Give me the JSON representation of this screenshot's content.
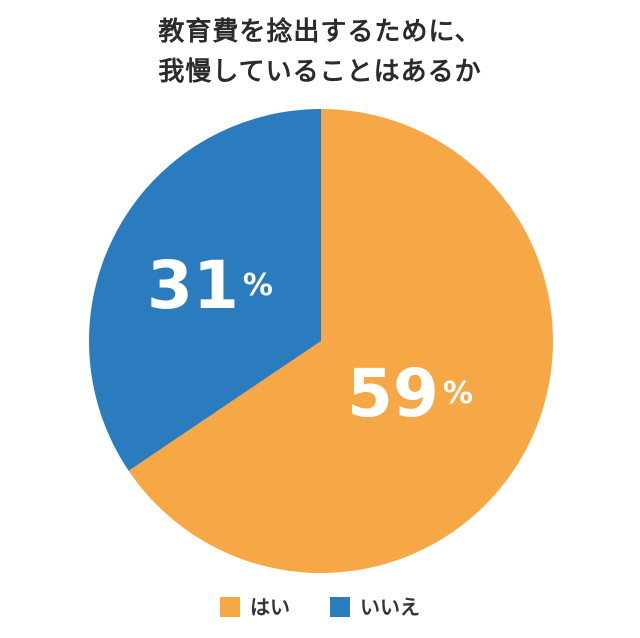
{
  "title": {
    "line1": "教育費を捻出するために、",
    "line2": "我慢していることはあるか"
  },
  "chart_data": {
    "type": "pie",
    "slices": [
      {
        "label": "はい",
        "value": 59,
        "display": "59",
        "unit": "%",
        "color": "#F5A845"
      },
      {
        "label": "いいえ",
        "value": 31,
        "display": "31",
        "unit": "%",
        "color": "#2B7BBF"
      }
    ],
    "legend_position": "bottom",
    "start": "12 o'clock",
    "direction": "clockwise"
  },
  "legend": [
    {
      "label": "はい",
      "color": "#F5A845"
    },
    {
      "label": "いいえ",
      "color": "#2B7BBF"
    }
  ]
}
